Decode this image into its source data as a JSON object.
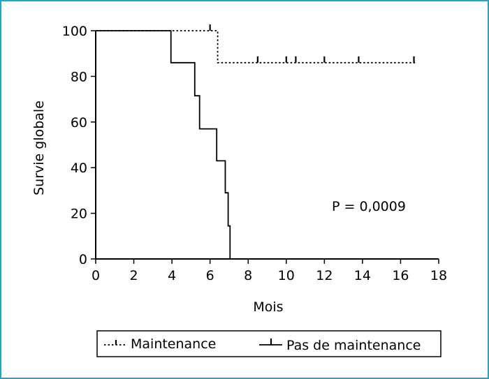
{
  "chart_data": {
    "type": "line",
    "title": "",
    "xlabel": "Mois",
    "ylabel": "Survie globale",
    "xlim": [
      0,
      18
    ],
    "ylim": [
      0,
      100
    ],
    "xticks": [
      0,
      2,
      4,
      6,
      8,
      10,
      12,
      14,
      16,
      18
    ],
    "yticks": [
      0,
      20,
      40,
      60,
      80,
      100
    ],
    "grid": false,
    "legend_position": "bottom",
    "annotation": "P = 0,0009",
    "series": [
      {
        "name": "Maintenance",
        "style": "dotted",
        "step": true,
        "points": [
          [
            0,
            100
          ],
          [
            6.4,
            100
          ],
          [
            6.4,
            86
          ],
          [
            16.8,
            86
          ]
        ],
        "censored": [
          [
            6.0,
            100
          ],
          [
            8.5,
            86
          ],
          [
            10.0,
            86
          ],
          [
            10.5,
            86
          ],
          [
            12.0,
            86
          ],
          [
            13.8,
            86
          ],
          [
            16.7,
            86
          ]
        ]
      },
      {
        "name": "Pas de maintenance",
        "style": "solid",
        "step": true,
        "points": [
          [
            0,
            100
          ],
          [
            3.95,
            100
          ],
          [
            3.95,
            86
          ],
          [
            5.2,
            86
          ],
          [
            5.2,
            71.5
          ],
          [
            5.45,
            71.5
          ],
          [
            5.45,
            57
          ],
          [
            6.35,
            57
          ],
          [
            6.35,
            43
          ],
          [
            6.8,
            43
          ],
          [
            6.8,
            29
          ],
          [
            6.95,
            29
          ],
          [
            6.95,
            14.5
          ],
          [
            7.05,
            14.5
          ],
          [
            7.05,
            0
          ],
          [
            18,
            0
          ]
        ],
        "censored": []
      }
    ]
  }
}
